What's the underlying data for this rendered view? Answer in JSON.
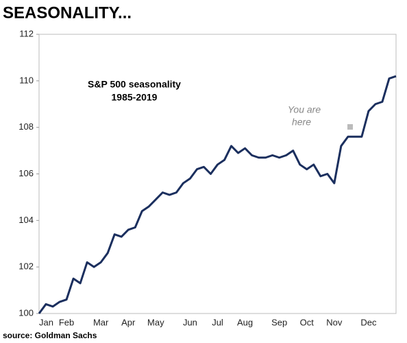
{
  "page_title": "SEASONALITY...",
  "source": "source: Goldman Sachs",
  "chart_data": {
    "type": "line",
    "title_lines": [
      "S&P 500 seasonality",
      "1985-2019"
    ],
    "annotation_lines": [
      "You are",
      "here"
    ],
    "categories": [
      "Jan",
      null,
      null,
      null,
      "Feb",
      null,
      null,
      null,
      null,
      "Mar",
      null,
      null,
      null,
      "Apr",
      null,
      null,
      null,
      "May",
      null,
      null,
      null,
      null,
      "Jun",
      null,
      null,
      null,
      "Jul",
      null,
      null,
      null,
      "Aug",
      null,
      null,
      null,
      null,
      "Sep",
      null,
      null,
      null,
      "Oct",
      null,
      null,
      null,
      "Nov",
      null,
      null,
      null,
      null,
      "Dec",
      null,
      null,
      null,
      null
    ],
    "series": [
      {
        "name": "S&P 500",
        "color": "#1b2f5e",
        "values": [
          100.0,
          100.4,
          100.3,
          100.5,
          100.6,
          101.5,
          101.3,
          102.2,
          102.0,
          102.2,
          102.6,
          103.4,
          103.3,
          103.6,
          103.7,
          104.4,
          104.6,
          104.9,
          105.2,
          105.1,
          105.2,
          105.6,
          105.8,
          106.2,
          106.3,
          106.0,
          106.4,
          106.6,
          107.2,
          106.9,
          107.1,
          106.8,
          106.7,
          106.7,
          106.8,
          106.7,
          106.8,
          107.0,
          106.4,
          106.2,
          106.4,
          105.9,
          106.0,
          105.6,
          107.2,
          107.6,
          107.6,
          107.6,
          108.7,
          109.0,
          109.1,
          110.1,
          110.2
        ]
      }
    ],
    "ylim": [
      100,
      112
    ],
    "yticks": [
      100,
      102,
      104,
      106,
      108,
      110,
      112
    ],
    "grid": false
  }
}
